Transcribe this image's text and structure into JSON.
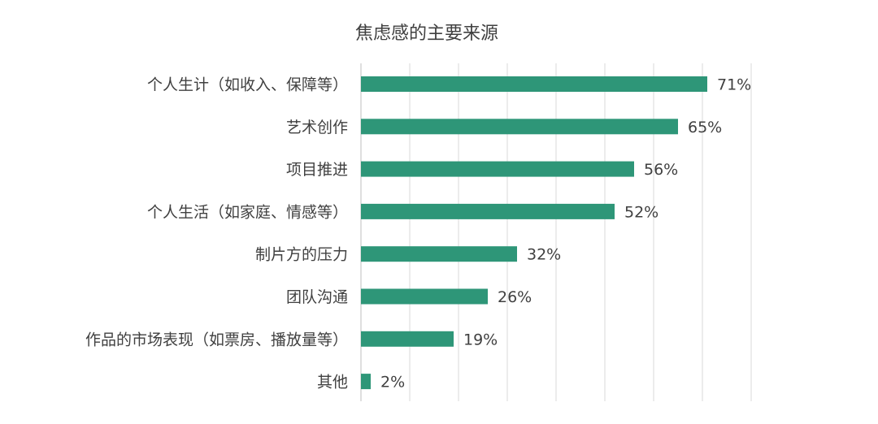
{
  "chart_data": {
    "type": "bar",
    "orientation": "horizontal",
    "title": "焦虑感的主要来源",
    "categories": [
      "个人生计（如收入、保障等）",
      "艺术创作",
      "项目推进",
      "个人生活（如家庭、情感等）",
      "制片方的压力",
      "团队沟通",
      "作品的市场表现（如票房、播放量等）",
      "其他"
    ],
    "values": [
      71,
      65,
      56,
      52,
      32,
      26,
      19,
      2
    ],
    "value_labels": [
      "71%",
      "65%",
      "56%",
      "52%",
      "32%",
      "26%",
      "19%",
      "2%"
    ],
    "xlim": [
      0,
      80
    ],
    "grid": "vertical",
    "legend": "none",
    "colors": {
      "bar": "#2e9678",
      "grid": "#d9d9d9",
      "text": "#404040"
    }
  }
}
